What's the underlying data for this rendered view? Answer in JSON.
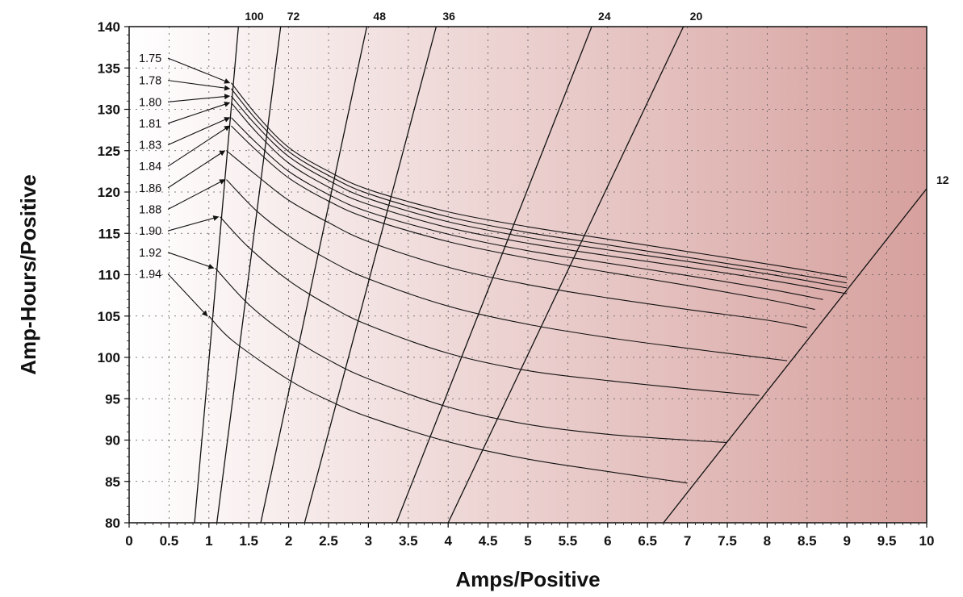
{
  "chart_data": {
    "type": "line",
    "title": "",
    "xlabel": "Amps/Positive",
    "ylabel": "Amp-Hours/Positive",
    "xlim": [
      0,
      10
    ],
    "ylim": [
      80,
      140
    ],
    "x_ticks": [
      "0",
      "0.5",
      "1",
      "1.5",
      "2",
      "2.5",
      "3",
      "3.5",
      "4",
      "4.5",
      "5",
      "5.5",
      "6",
      "6.5",
      "7",
      "7.5",
      "8",
      "8.5",
      "9",
      "9.5",
      "10"
    ],
    "y_ticks": [
      "80",
      "85",
      "90",
      "95",
      "100",
      "105",
      "110",
      "115",
      "120",
      "125",
      "130",
      "135",
      "140"
    ],
    "grid": true,
    "background_gradient": [
      "#ffffff",
      "#d6a09d"
    ],
    "voltage_series": [
      {
        "name": "1.75",
        "label_y": 136.2,
        "points": [
          [
            1.28,
            133.2
          ],
          [
            1.6,
            129.3
          ],
          [
            2,
            125.4
          ],
          [
            2.5,
            122.5
          ],
          [
            3,
            120.3
          ],
          [
            4,
            117.6
          ],
          [
            5,
            115.8
          ],
          [
            6,
            114.3
          ],
          [
            7,
            112.8
          ],
          [
            8,
            111.3
          ],
          [
            9,
            109.7
          ]
        ]
      },
      {
        "name": "1.78",
        "label_y": 133.5,
        "points": [
          [
            1.28,
            132.5
          ],
          [
            1.6,
            128.7
          ],
          [
            2,
            124.9
          ],
          [
            2.5,
            122.0
          ],
          [
            3,
            119.8
          ],
          [
            4,
            117.0
          ],
          [
            5,
            115.1
          ],
          [
            6,
            113.6
          ],
          [
            7,
            112.1
          ],
          [
            8,
            110.6
          ],
          [
            9,
            109.0
          ]
        ]
      },
      {
        "name": "1.80",
        "label_y": 130.9,
        "points": [
          [
            1.28,
            131.6
          ],
          [
            1.6,
            128.0
          ],
          [
            2,
            124.3
          ],
          [
            2.5,
            121.4
          ],
          [
            3,
            119.2
          ],
          [
            4,
            116.4
          ],
          [
            5,
            114.5
          ],
          [
            6,
            113.0
          ],
          [
            7,
            111.6
          ],
          [
            8,
            110.1
          ],
          [
            9,
            108.4
          ]
        ]
      },
      {
        "name": "1.81",
        "label_y": 128.3,
        "points": [
          [
            1.28,
            130.8
          ],
          [
            1.6,
            127.2
          ],
          [
            2,
            123.5
          ],
          [
            2.5,
            120.6
          ],
          [
            3,
            118.5
          ],
          [
            4,
            115.7
          ],
          [
            5,
            113.8
          ],
          [
            6,
            112.3
          ],
          [
            7,
            110.9
          ],
          [
            8,
            109.4
          ],
          [
            9,
            107.7
          ]
        ]
      },
      {
        "name": "1.83",
        "label_y": 125.7,
        "points": [
          [
            1.28,
            129.0
          ],
          [
            1.6,
            125.9
          ],
          [
            2,
            122.5
          ],
          [
            2.5,
            119.7
          ],
          [
            3,
            117.6
          ],
          [
            4,
            114.9
          ],
          [
            5,
            112.9
          ],
          [
            6,
            111.4
          ],
          [
            7,
            109.9
          ],
          [
            8,
            108.3
          ],
          [
            8.7,
            107.0
          ]
        ]
      },
      {
        "name": "1.84",
        "label_y": 123.1,
        "points": [
          [
            1.28,
            128.0
          ],
          [
            1.6,
            125.0
          ],
          [
            2,
            121.7
          ],
          [
            2.5,
            118.9
          ],
          [
            3,
            116.8
          ],
          [
            4,
            114.0
          ],
          [
            5,
            112.0
          ],
          [
            6,
            110.3
          ],
          [
            7,
            108.7
          ],
          [
            8,
            107.0
          ],
          [
            8.6,
            105.8
          ]
        ]
      },
      {
        "name": "1.86",
        "label_y": 120.5,
        "points": [
          [
            1.22,
            125.0
          ],
          [
            1.6,
            122.0
          ],
          [
            2,
            119.0
          ],
          [
            2.5,
            116.3
          ],
          [
            3,
            114.0
          ],
          [
            4,
            110.9
          ],
          [
            5,
            108.8
          ],
          [
            6,
            107.2
          ],
          [
            7,
            105.8
          ],
          [
            8,
            104.5
          ],
          [
            8.5,
            103.6
          ]
        ]
      },
      {
        "name": "1.88",
        "label_y": 117.9,
        "points": [
          [
            1.22,
            121.5
          ],
          [
            1.6,
            117.7
          ],
          [
            2,
            114.7
          ],
          [
            2.5,
            111.8
          ],
          [
            3,
            109.5
          ],
          [
            4,
            106.2
          ],
          [
            5,
            104.0
          ],
          [
            6,
            102.4
          ],
          [
            7,
            101.1
          ],
          [
            8,
            99.9
          ],
          [
            8.25,
            99.6
          ]
        ]
      },
      {
        "name": "1.90",
        "label_y": 115.3,
        "points": [
          [
            1.14,
            117.0
          ],
          [
            1.5,
            113.3
          ],
          [
            2,
            109.3
          ],
          [
            2.5,
            106.3
          ],
          [
            3,
            103.9
          ],
          [
            4,
            100.5
          ],
          [
            5,
            98.4
          ],
          [
            6,
            97.2
          ],
          [
            7,
            96.2
          ],
          [
            7.9,
            95.4
          ]
        ]
      },
      {
        "name": "1.92",
        "label_y": 112.7,
        "points": [
          [
            1.08,
            110.8
          ],
          [
            1.5,
            106.4
          ],
          [
            2,
            102.6
          ],
          [
            2.5,
            99.7
          ],
          [
            3,
            97.4
          ],
          [
            4,
            94.0
          ],
          [
            5,
            91.9
          ],
          [
            6,
            90.7
          ],
          [
            7,
            90.0
          ],
          [
            7.5,
            89.7
          ]
        ]
      },
      {
        "name": "1.94",
        "label_y": 110.1,
        "points": [
          [
            1.0,
            105.0
          ],
          [
            1.3,
            102.0
          ],
          [
            2,
            97.3
          ],
          [
            2.5,
            94.8
          ],
          [
            3,
            92.8
          ],
          [
            4,
            89.8
          ],
          [
            5,
            87.7
          ],
          [
            6,
            86.2
          ],
          [
            7,
            84.8
          ]
        ]
      }
    ],
    "hour_lines": [
      {
        "name": "100",
        "points": [
          [
            0.82,
            80
          ],
          [
            1.37,
            140
          ]
        ]
      },
      {
        "name": "72",
        "points": [
          [
            1.1,
            80
          ],
          [
            1.9,
            140
          ]
        ]
      },
      {
        "name": "48",
        "points": [
          [
            1.65,
            80
          ],
          [
            2.98,
            140
          ]
        ]
      },
      {
        "name": "36",
        "points": [
          [
            2.2,
            80
          ],
          [
            3.85,
            140
          ]
        ]
      },
      {
        "name": "24",
        "points": [
          [
            3.35,
            80
          ],
          [
            5.8,
            140
          ]
        ]
      },
      {
        "name": "20",
        "points": [
          [
            4.0,
            80
          ],
          [
            6.95,
            140
          ]
        ]
      },
      {
        "name": "12",
        "points": [
          [
            6.7,
            80
          ],
          [
            10.0,
            120.4
          ]
        ]
      }
    ]
  }
}
